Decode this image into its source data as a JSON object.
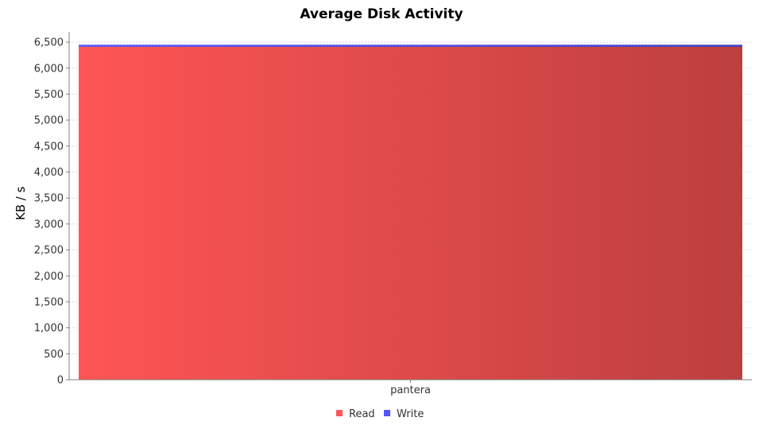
{
  "chart_data": {
    "type": "bar",
    "stacked": true,
    "title": "Average Disk Activity",
    "xlabel": "",
    "ylabel": "KB / s",
    "categories": [
      "pantera"
    ],
    "series": [
      {
        "name": "Read",
        "values": [
          6410
        ],
        "color": "#ff5555"
      },
      {
        "name": "Write",
        "values": [
          40
        ],
        "color": "#5555ff"
      }
    ],
    "ylim": [
      0,
      6700
    ],
    "yticks": [
      0,
      500,
      1000,
      1500,
      2000,
      2500,
      3000,
      3500,
      4000,
      4500,
      5000,
      5500,
      6000,
      6500
    ],
    "ytick_labels": [
      "0",
      "500",
      "1,000",
      "1,500",
      "2,000",
      "2,500",
      "3,000",
      "3,500",
      "4,000",
      "4,500",
      "5,000",
      "5,500",
      "6,000",
      "6,500"
    ],
    "grid": true,
    "legend_position": "bottom-center"
  }
}
